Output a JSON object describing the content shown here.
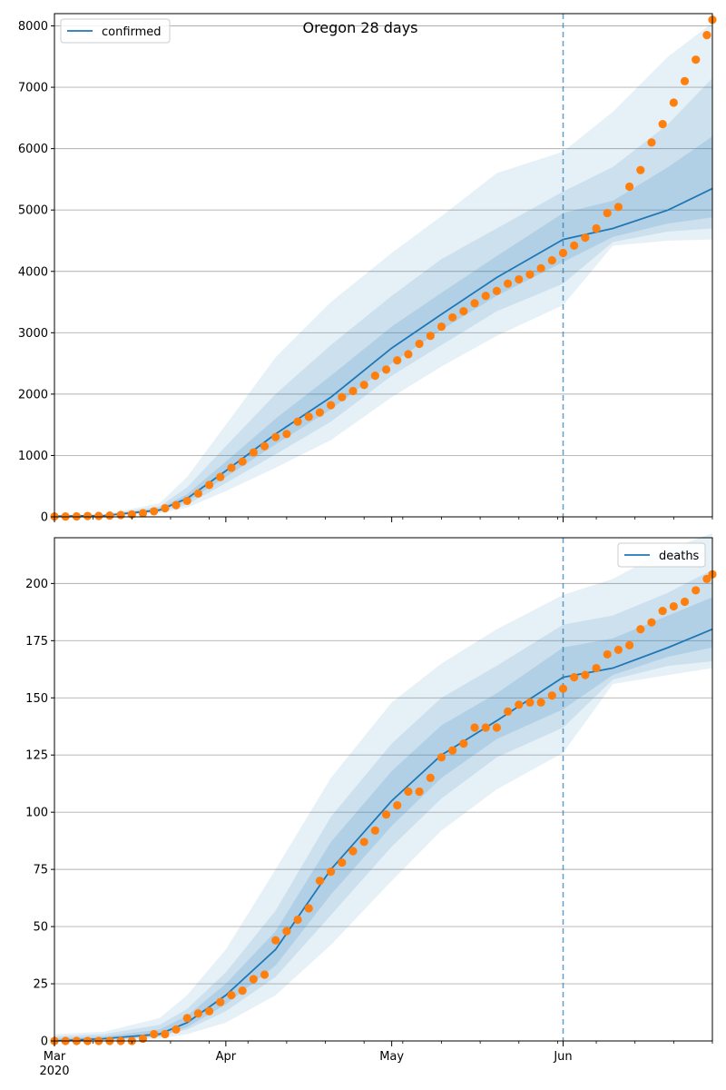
{
  "colors": {
    "line": "#1f77b4",
    "points": "#ff7f0e",
    "band": "#1f77b4",
    "grid": "#b0b0b0",
    "vline": "#1f77b4"
  },
  "x_axis": {
    "start": "2020-03-01",
    "end": "2020-06-28",
    "ticks": [
      {
        "date": "2020-03-01",
        "label": "Mar",
        "sublabel": "2020"
      },
      {
        "date": "2020-04-01",
        "label": "Apr",
        "sublabel": ""
      },
      {
        "date": "2020-05-01",
        "label": "May",
        "sublabel": ""
      },
      {
        "date": "2020-06-01",
        "label": "Jun",
        "sublabel": ""
      }
    ],
    "forecast_start": "2020-06-01"
  },
  "chart_data": [
    {
      "type": "line",
      "title": "Oregon 28 days",
      "legend": {
        "label": "confirmed",
        "position": "top-left"
      },
      "ylim": [
        0,
        8200
      ],
      "yticks": [
        0,
        1000,
        2000,
        3000,
        4000,
        5000,
        6000,
        7000,
        8000
      ],
      "grid": true,
      "observed_points": [
        [
          "2020-03-01",
          5
        ],
        [
          "2020-03-03",
          5
        ],
        [
          "2020-03-05",
          8
        ],
        [
          "2020-03-07",
          14
        ],
        [
          "2020-03-09",
          15
        ],
        [
          "2020-03-11",
          20
        ],
        [
          "2020-03-13",
          30
        ],
        [
          "2020-03-15",
          40
        ],
        [
          "2020-03-17",
          60
        ],
        [
          "2020-03-19",
          90
        ],
        [
          "2020-03-21",
          140
        ],
        [
          "2020-03-23",
          190
        ],
        [
          "2020-03-25",
          260
        ],
        [
          "2020-03-27",
          380
        ],
        [
          "2020-03-29",
          520
        ],
        [
          "2020-03-31",
          650
        ],
        [
          "2020-04-02",
          800
        ],
        [
          "2020-04-04",
          900
        ],
        [
          "2020-04-06",
          1050
        ],
        [
          "2020-04-08",
          1150
        ],
        [
          "2020-04-10",
          1300
        ],
        [
          "2020-04-12",
          1350
        ],
        [
          "2020-04-14",
          1550
        ],
        [
          "2020-04-16",
          1630
        ],
        [
          "2020-04-18",
          1700
        ],
        [
          "2020-04-20",
          1820
        ],
        [
          "2020-04-22",
          1950
        ],
        [
          "2020-04-24",
          2050
        ],
        [
          "2020-04-26",
          2150
        ],
        [
          "2020-04-28",
          2300
        ],
        [
          "2020-04-30",
          2400
        ],
        [
          "2020-05-02",
          2550
        ],
        [
          "2020-05-04",
          2650
        ],
        [
          "2020-05-06",
          2820
        ],
        [
          "2020-05-08",
          2950
        ],
        [
          "2020-05-10",
          3100
        ],
        [
          "2020-05-12",
          3250
        ],
        [
          "2020-05-14",
          3350
        ],
        [
          "2020-05-16",
          3480
        ],
        [
          "2020-05-18",
          3600
        ],
        [
          "2020-05-20",
          3680
        ],
        [
          "2020-05-22",
          3800
        ],
        [
          "2020-05-24",
          3870
        ],
        [
          "2020-05-26",
          3950
        ],
        [
          "2020-05-28",
          4050
        ],
        [
          "2020-05-30",
          4180
        ],
        [
          "2020-06-01",
          4300
        ],
        [
          "2020-06-03",
          4420
        ],
        [
          "2020-06-05",
          4550
        ],
        [
          "2020-06-07",
          4700
        ],
        [
          "2020-06-09",
          4950
        ],
        [
          "2020-06-11",
          5050
        ],
        [
          "2020-06-13",
          5380
        ],
        [
          "2020-06-15",
          5650
        ],
        [
          "2020-06-17",
          6100
        ],
        [
          "2020-06-19",
          6400
        ],
        [
          "2020-06-21",
          6750
        ],
        [
          "2020-06-23",
          7100
        ],
        [
          "2020-06-25",
          7450
        ],
        [
          "2020-06-27",
          7850
        ],
        [
          "2020-06-28",
          8100
        ]
      ],
      "median": [
        [
          "2020-03-01",
          10
        ],
        [
          "2020-03-10",
          20
        ],
        [
          "2020-03-20",
          110
        ],
        [
          "2020-03-25",
          300
        ],
        [
          "2020-04-01",
          750
        ],
        [
          "2020-04-10",
          1350
        ],
        [
          "2020-04-20",
          1950
        ],
        [
          "2020-05-01",
          2750
        ],
        [
          "2020-05-10",
          3300
        ],
        [
          "2020-05-20",
          3900
        ],
        [
          "2020-06-01",
          4520
        ],
        [
          "2020-06-10",
          4700
        ],
        [
          "2020-06-20",
          5000
        ],
        [
          "2020-06-28",
          5350
        ]
      ],
      "band_outer": [
        [
          "2020-03-01",
          0,
          20
        ],
        [
          "2020-03-10",
          10,
          40
        ],
        [
          "2020-03-20",
          60,
          220
        ],
        [
          "2020-03-25",
          150,
          650
        ],
        [
          "2020-04-01",
          420,
          1500
        ],
        [
          "2020-04-10",
          800,
          2600
        ],
        [
          "2020-04-20",
          1250,
          3500
        ],
        [
          "2020-05-01",
          1950,
          4300
        ],
        [
          "2020-05-10",
          2450,
          4900
        ],
        [
          "2020-05-20",
          2950,
          5600
        ],
        [
          "2020-06-01",
          3450,
          5950
        ],
        [
          "2020-06-10",
          4420,
          6600
        ],
        [
          "2020-06-20",
          4500,
          7500
        ],
        [
          "2020-06-28",
          4520,
          8050
        ]
      ],
      "band_mid": [
        [
          "2020-03-01",
          2,
          15
        ],
        [
          "2020-03-10",
          14,
          32
        ],
        [
          "2020-03-20",
          80,
          170
        ],
        [
          "2020-03-25",
          200,
          480
        ],
        [
          "2020-04-01",
          550,
          1150
        ],
        [
          "2020-04-10",
          1020,
          2000
        ],
        [
          "2020-04-20",
          1550,
          2800
        ],
        [
          "2020-05-01",
          2300,
          3600
        ],
        [
          "2020-05-10",
          2800,
          4200
        ],
        [
          "2020-05-20",
          3350,
          4700
        ],
        [
          "2020-06-01",
          3800,
          5300
        ],
        [
          "2020-06-10",
          4480,
          5700
        ],
        [
          "2020-06-20",
          4650,
          6400
        ],
        [
          "2020-06-28",
          4700,
          7150
        ]
      ],
      "band_inner": [
        [
          "2020-03-01",
          5,
          12
        ],
        [
          "2020-03-10",
          16,
          26
        ],
        [
          "2020-03-20",
          95,
          135
        ],
        [
          "2020-03-25",
          250,
          370
        ],
        [
          "2020-04-01",
          650,
          900
        ],
        [
          "2020-04-10",
          1180,
          1600
        ],
        [
          "2020-04-20",
          1750,
          2300
        ],
        [
          "2020-05-01",
          2500,
          3100
        ],
        [
          "2020-05-10",
          3050,
          3650
        ],
        [
          "2020-05-20",
          3600,
          4250
        ],
        [
          "2020-06-01",
          4150,
          4950
        ],
        [
          "2020-06-10",
          4560,
          5150
        ],
        [
          "2020-06-20",
          4780,
          5700
        ],
        [
          "2020-06-28",
          4880,
          6200
        ]
      ]
    },
    {
      "type": "line",
      "title": "",
      "legend": {
        "label": "deaths",
        "position": "top-right"
      },
      "ylim": [
        0,
        220
      ],
      "yticks": [
        0,
        25,
        50,
        75,
        100,
        125,
        150,
        175,
        200
      ],
      "grid": true,
      "observed_points": [
        [
          "2020-03-01",
          0
        ],
        [
          "2020-03-03",
          0
        ],
        [
          "2020-03-05",
          0
        ],
        [
          "2020-03-07",
          0
        ],
        [
          "2020-03-09",
          0
        ],
        [
          "2020-03-11",
          0
        ],
        [
          "2020-03-13",
          0
        ],
        [
          "2020-03-15",
          0
        ],
        [
          "2020-03-17",
          1
        ],
        [
          "2020-03-19",
          3
        ],
        [
          "2020-03-21",
          3
        ],
        [
          "2020-03-23",
          5
        ],
        [
          "2020-03-25",
          10
        ],
        [
          "2020-03-27",
          12
        ],
        [
          "2020-03-29",
          13
        ],
        [
          "2020-03-31",
          17
        ],
        [
          "2020-04-02",
          20
        ],
        [
          "2020-04-04",
          22
        ],
        [
          "2020-04-06",
          27
        ],
        [
          "2020-04-08",
          29
        ],
        [
          "2020-04-10",
          44
        ],
        [
          "2020-04-12",
          48
        ],
        [
          "2020-04-14",
          53
        ],
        [
          "2020-04-16",
          58
        ],
        [
          "2020-04-18",
          70
        ],
        [
          "2020-04-20",
          74
        ],
        [
          "2020-04-22",
          78
        ],
        [
          "2020-04-24",
          83
        ],
        [
          "2020-04-26",
          87
        ],
        [
          "2020-04-28",
          92
        ],
        [
          "2020-04-30",
          99
        ],
        [
          "2020-05-02",
          103
        ],
        [
          "2020-05-04",
          109
        ],
        [
          "2020-05-06",
          109
        ],
        [
          "2020-05-08",
          115
        ],
        [
          "2020-05-10",
          124
        ],
        [
          "2020-05-12",
          127
        ],
        [
          "2020-05-14",
          130
        ],
        [
          "2020-05-16",
          137
        ],
        [
          "2020-05-18",
          137
        ],
        [
          "2020-05-20",
          137
        ],
        [
          "2020-05-22",
          144
        ],
        [
          "2020-05-24",
          147
        ],
        [
          "2020-05-26",
          148
        ],
        [
          "2020-05-28",
          148
        ],
        [
          "2020-05-30",
          151
        ],
        [
          "2020-06-01",
          154
        ],
        [
          "2020-06-03",
          159
        ],
        [
          "2020-06-05",
          160
        ],
        [
          "2020-06-07",
          163
        ],
        [
          "2020-06-09",
          169
        ],
        [
          "2020-06-11",
          171
        ],
        [
          "2020-06-13",
          173
        ],
        [
          "2020-06-15",
          180
        ],
        [
          "2020-06-17",
          183
        ],
        [
          "2020-06-19",
          188
        ],
        [
          "2020-06-21",
          190
        ],
        [
          "2020-06-23",
          192
        ],
        [
          "2020-06-25",
          197
        ],
        [
          "2020-06-27",
          202
        ],
        [
          "2020-06-28",
          204
        ]
      ],
      "median": [
        [
          "2020-03-01",
          0
        ],
        [
          "2020-03-10",
          1
        ],
        [
          "2020-03-20",
          3
        ],
        [
          "2020-03-25",
          8
        ],
        [
          "2020-04-01",
          20
        ],
        [
          "2020-04-10",
          40
        ],
        [
          "2020-04-20",
          75
        ],
        [
          "2020-05-01",
          105
        ],
        [
          "2020-05-10",
          125
        ],
        [
          "2020-05-20",
          140
        ],
        [
          "2020-06-01",
          159
        ],
        [
          "2020-06-10",
          163
        ],
        [
          "2020-06-20",
          172
        ],
        [
          "2020-06-28",
          180
        ]
      ],
      "band_outer": [
        [
          "2020-03-01",
          0,
          3
        ],
        [
          "2020-03-10",
          0,
          4
        ],
        [
          "2020-03-20",
          1,
          10
        ],
        [
          "2020-03-25",
          3,
          20
        ],
        [
          "2020-04-01",
          8,
          40
        ],
        [
          "2020-04-10",
          20,
          75
        ],
        [
          "2020-04-20",
          42,
          115
        ],
        [
          "2020-05-01",
          70,
          148
        ],
        [
          "2020-05-10",
          92,
          165
        ],
        [
          "2020-05-20",
          110,
          180
        ],
        [
          "2020-06-01",
          126,
          195
        ],
        [
          "2020-06-10",
          156,
          202
        ],
        [
          "2020-06-20",
          160,
          215
        ],
        [
          "2020-06-28",
          163,
          222
        ]
      ],
      "band_mid": [
        [
          "2020-03-01",
          0,
          2
        ],
        [
          "2020-03-10",
          0,
          3
        ],
        [
          "2020-03-20",
          2,
          7
        ],
        [
          "2020-03-25",
          5,
          14
        ],
        [
          "2020-04-01",
          13,
          30
        ],
        [
          "2020-04-10",
          28,
          57
        ],
        [
          "2020-04-20",
          55,
          98
        ],
        [
          "2020-05-01",
          85,
          130
        ],
        [
          "2020-05-10",
          106,
          150
        ],
        [
          "2020-05-20",
          124,
          164
        ],
        [
          "2020-06-01",
          137,
          182
        ],
        [
          "2020-06-10",
          158,
          186
        ],
        [
          "2020-06-20",
          164,
          196
        ],
        [
          "2020-06-28",
          166,
          206
        ]
      ],
      "band_inner": [
        [
          "2020-03-01",
          0,
          1
        ],
        [
          "2020-03-10",
          1,
          2
        ],
        [
          "2020-03-20",
          2,
          5
        ],
        [
          "2020-03-25",
          6,
          11
        ],
        [
          "2020-04-01",
          16,
          25
        ],
        [
          "2020-04-10",
          33,
          48
        ],
        [
          "2020-04-20",
          64,
          87
        ],
        [
          "2020-05-01",
          94,
          118
        ],
        [
          "2020-05-10",
          115,
          138
        ],
        [
          "2020-05-20",
          132,
          152
        ],
        [
          "2020-06-01",
          145,
          172
        ],
        [
          "2020-06-10",
          160,
          176
        ],
        [
          "2020-06-20",
          168,
          186
        ],
        [
          "2020-06-28",
          172,
          194
        ]
      ]
    }
  ]
}
